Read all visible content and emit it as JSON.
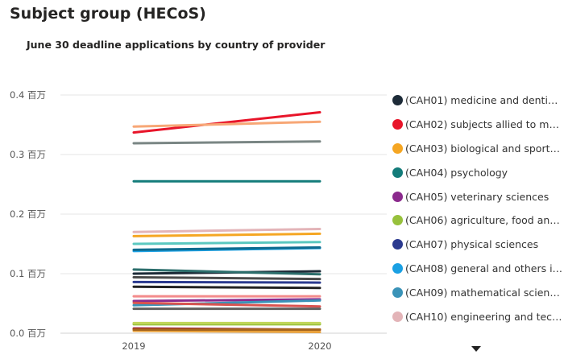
{
  "page": {
    "title": "Subject group (HECoS)"
  },
  "chart_data": {
    "type": "line",
    "title": "June 30 deadline applications  by country of provider",
    "xlabel": "",
    "ylabel": "",
    "x": [
      "2019",
      "2020"
    ],
    "ylim": [
      0,
      0.4
    ],
    "yticks": [
      0.0,
      0.1,
      0.2,
      0.3,
      0.4
    ],
    "ytick_labels": [
      "0.0 百万",
      "0.1 百万",
      "0.2 百万",
      "0.3 百万",
      "0.4 百万"
    ],
    "grid": true,
    "legend_position": "right",
    "series": [
      {
        "name": "(CAH01) medicine and denti…",
        "color": "#1d2b38",
        "values": [
          0.1,
          0.104
        ],
        "in_legend": true
      },
      {
        "name": "(CAH02) subjects allied to m…",
        "color": "#e8152a",
        "values": [
          0.337,
          0.371
        ],
        "in_legend": true
      },
      {
        "name": "(CAH03) biological and sport…",
        "color": "#f5a623",
        "values": [
          0.163,
          0.167
        ],
        "in_legend": true
      },
      {
        "name": "(CAH04) psychology",
        "color": "#137c7a",
        "values": [
          0.255,
          0.255
        ],
        "in_legend": true
      },
      {
        "name": "(CAH05) veterinary sciences",
        "color": "#8b2a8d",
        "values": [
          0.054,
          0.057
        ],
        "in_legend": true
      },
      {
        "name": "(CAH06) agriculture, food an…",
        "color": "#97c13c",
        "values": [
          0.015,
          0.015
        ],
        "in_legend": true
      },
      {
        "name": "(CAH07) physical sciences",
        "color": "#2b3a8f",
        "values": [
          0.086,
          0.085
        ],
        "in_legend": true
      },
      {
        "name": "(CAH08) general and others i…",
        "color": "#1aa0e3",
        "values": [
          0.138,
          0.143
        ],
        "in_legend": true
      },
      {
        "name": "(CAH09) mathematical scien…",
        "color": "#3a93b8",
        "values": [
          0.047,
          0.055
        ],
        "in_legend": true
      },
      {
        "name": "(CAH10) engineering and tec…",
        "color": "#e3b4b8",
        "values": [
          0.17,
          0.175
        ],
        "in_legend": true
      },
      {
        "name": "",
        "color": "#f7a776",
        "values": [
          0.347,
          0.355
        ],
        "in_legend": false
      },
      {
        "name": "",
        "color": "#7a8684",
        "values": [
          0.319,
          0.322
        ],
        "in_legend": false
      },
      {
        "name": "",
        "color": "#5bc8c0",
        "values": [
          0.15,
          0.153
        ],
        "in_legend": false
      },
      {
        "name": "",
        "color": "#0e6b8f",
        "values": [
          0.14,
          0.144
        ],
        "in_legend": false
      },
      {
        "name": "",
        "color": "#2c6e6c",
        "values": [
          0.107,
          0.099
        ],
        "in_legend": false
      },
      {
        "name": "",
        "color": "#4b4b4b",
        "values": [
          0.094,
          0.091
        ],
        "in_legend": false
      },
      {
        "name": "",
        "color": "#222222",
        "values": [
          0.078,
          0.076
        ],
        "in_legend": false
      },
      {
        "name": "",
        "color": "#f38b8b",
        "values": [
          0.062,
          0.062
        ],
        "in_legend": false
      },
      {
        "name": "",
        "color": "#d9534f",
        "values": [
          0.051,
          0.045
        ],
        "in_legend": false
      },
      {
        "name": "",
        "color": "#606060",
        "values": [
          0.041,
          0.041
        ],
        "in_legend": false
      },
      {
        "name": "",
        "color": "#c1d65a",
        "values": [
          0.017,
          0.017
        ],
        "in_legend": false
      },
      {
        "name": "",
        "color": "#9c1b2e",
        "values": [
          0.008,
          0.006
        ],
        "in_legend": false
      },
      {
        "name": "",
        "color": "#e9a13b",
        "values": [
          0.004,
          0.002
        ],
        "in_legend": false
      },
      {
        "name": "",
        "color": "#a6651d",
        "values": [
          0.006,
          0.006
        ],
        "in_legend": false
      }
    ]
  }
}
